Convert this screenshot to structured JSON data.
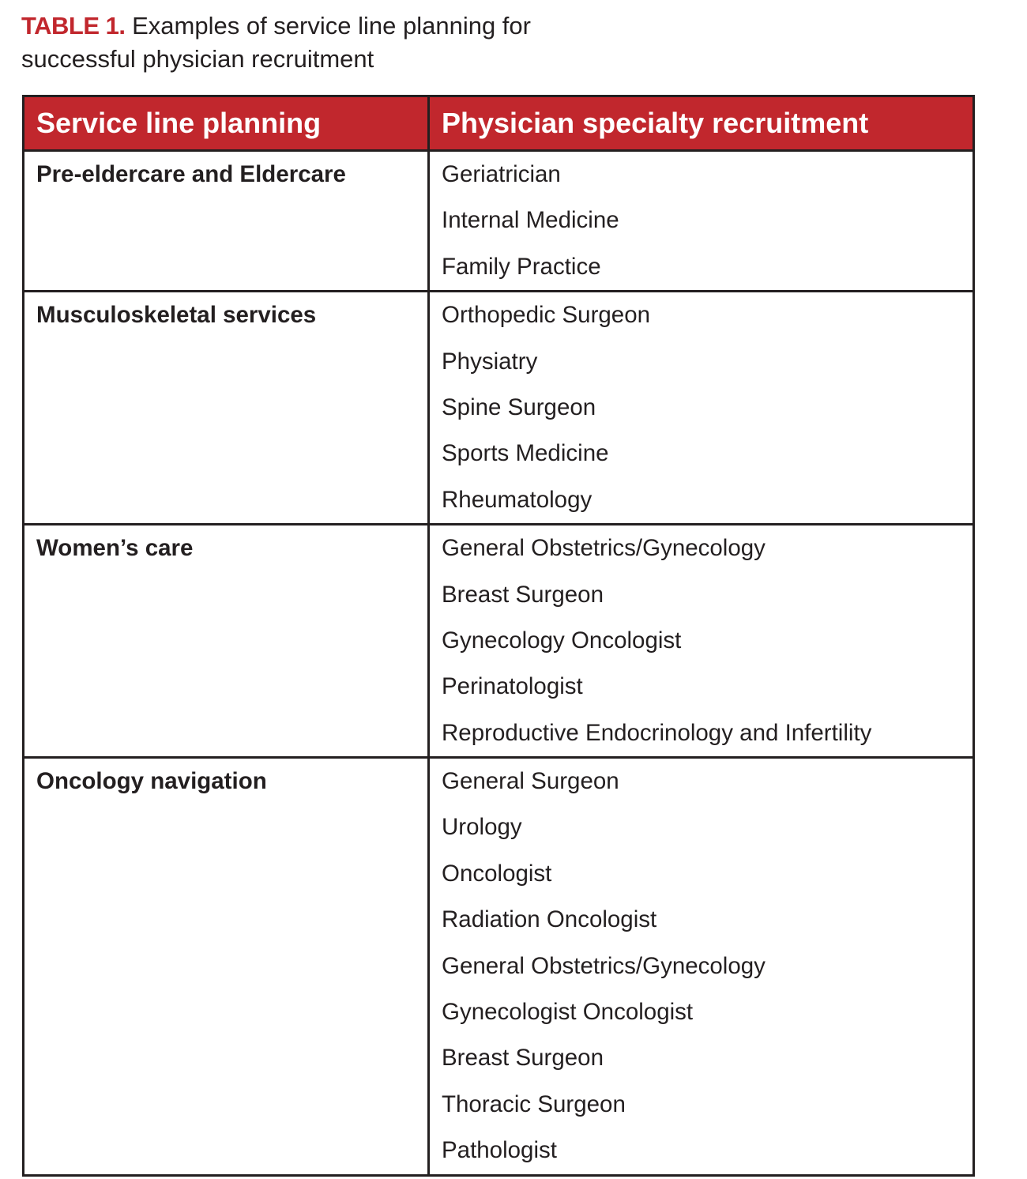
{
  "caption": {
    "label": "TABLE 1.",
    "text": " Examples of service line planning for successful physician recruitment"
  },
  "colors": {
    "header_bg": "#c1272d",
    "label": "#c1272d",
    "border": "#231f20"
  },
  "table": {
    "headers": [
      "Service line planning",
      "Physician specialty recruitment"
    ],
    "rows": [
      {
        "service": "Pre-eldercare and Eldercare",
        "specialties": [
          "Geriatrician",
          "Internal Medicine",
          "Family Practice"
        ]
      },
      {
        "service": "Musculoskeletal services",
        "specialties": [
          "Orthopedic Surgeon",
          "Physiatry",
          "Spine Surgeon",
          "Sports Medicine",
          "Rheumatology"
        ]
      },
      {
        "service": "Women’s care",
        "specialties": [
          "General Obstetrics/Gynecology",
          "Breast Surgeon",
          "Gynecology Oncologist",
          "Perinatologist",
          "Reproductive Endocrinology and Infertility"
        ]
      },
      {
        "service": "Oncology navigation",
        "specialties": [
          "General Surgeon",
          "Urology",
          "Oncologist",
          "Radiation Oncologist",
          "General Obstetrics/Gynecology",
          "Gynecologist Oncologist",
          "Breast Surgeon",
          "Thoracic Surgeon",
          "Pathologist"
        ]
      }
    ]
  }
}
